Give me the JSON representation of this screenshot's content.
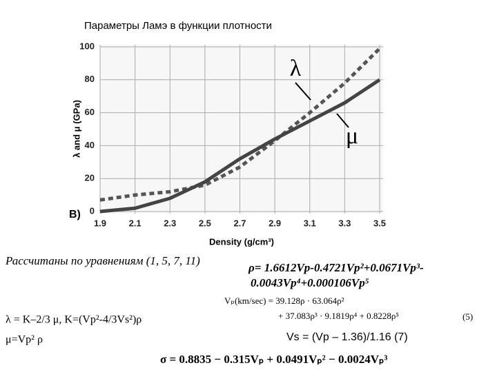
{
  "chart_data": {
    "type": "line",
    "title": "Параметры Ламэ в функции плотности",
    "panel_label": "B)",
    "x_label": "Density (g/cm³)",
    "y_label": "λ and μ (GPa)",
    "x": [
      1.9,
      2.1,
      2.3,
      2.5,
      2.7,
      2.9,
      3.1,
      3.3,
      3.5
    ],
    "series": [
      {
        "name": "λ",
        "color": "#555555",
        "dashed": true,
        "values": [
          7,
          10,
          12,
          16,
          27,
          43,
          60,
          78,
          99
        ]
      },
      {
        "name": "μ",
        "color": "#444444",
        "dashed": false,
        "values": [
          0,
          2,
          8,
          18,
          32,
          44,
          55,
          66,
          80
        ]
      }
    ],
    "xlim": [
      1.9,
      3.5
    ],
    "xticks": [
      1.9,
      2.1,
      2.3,
      2.5,
      2.7,
      2.9,
      3.1,
      3.3,
      3.5
    ],
    "ylim": [
      0,
      100
    ],
    "yticks": [
      0,
      20,
      40,
      60,
      80,
      100
    ],
    "grid": true
  },
  "notes": {
    "source": "Рассчитаны по уравнениям (1, 5, 7, 11)",
    "lambda_eq": "λ = K–2/3 μ, K=(Vp²-4/3Vs²)ρ",
    "mu_eq": "μ=Vp² ρ",
    "rho_eq_1": "ρ= 1.6612Vp-0.4721Vp²+0.0671Vp³-",
    "rho_eq_2": "0.0043Vp⁴+0.000106Vp⁵",
    "vp_eq_1": "Vₚ(km/sec) = 39.128ρ · 63.064ρ²",
    "vp_eq_2": "+ 37.083ρ³ · 9.1819ρ⁴ + 0.8228ρ⁵",
    "vp_eq_num": "(5)",
    "vs_eq": "Vs = (Vp – 1.36)/1.16   (7)",
    "sigma_eq": "σ = 0.8835 − 0.315Vₚ + 0.0491Vₚ² − 0.0024Vₚ³"
  }
}
